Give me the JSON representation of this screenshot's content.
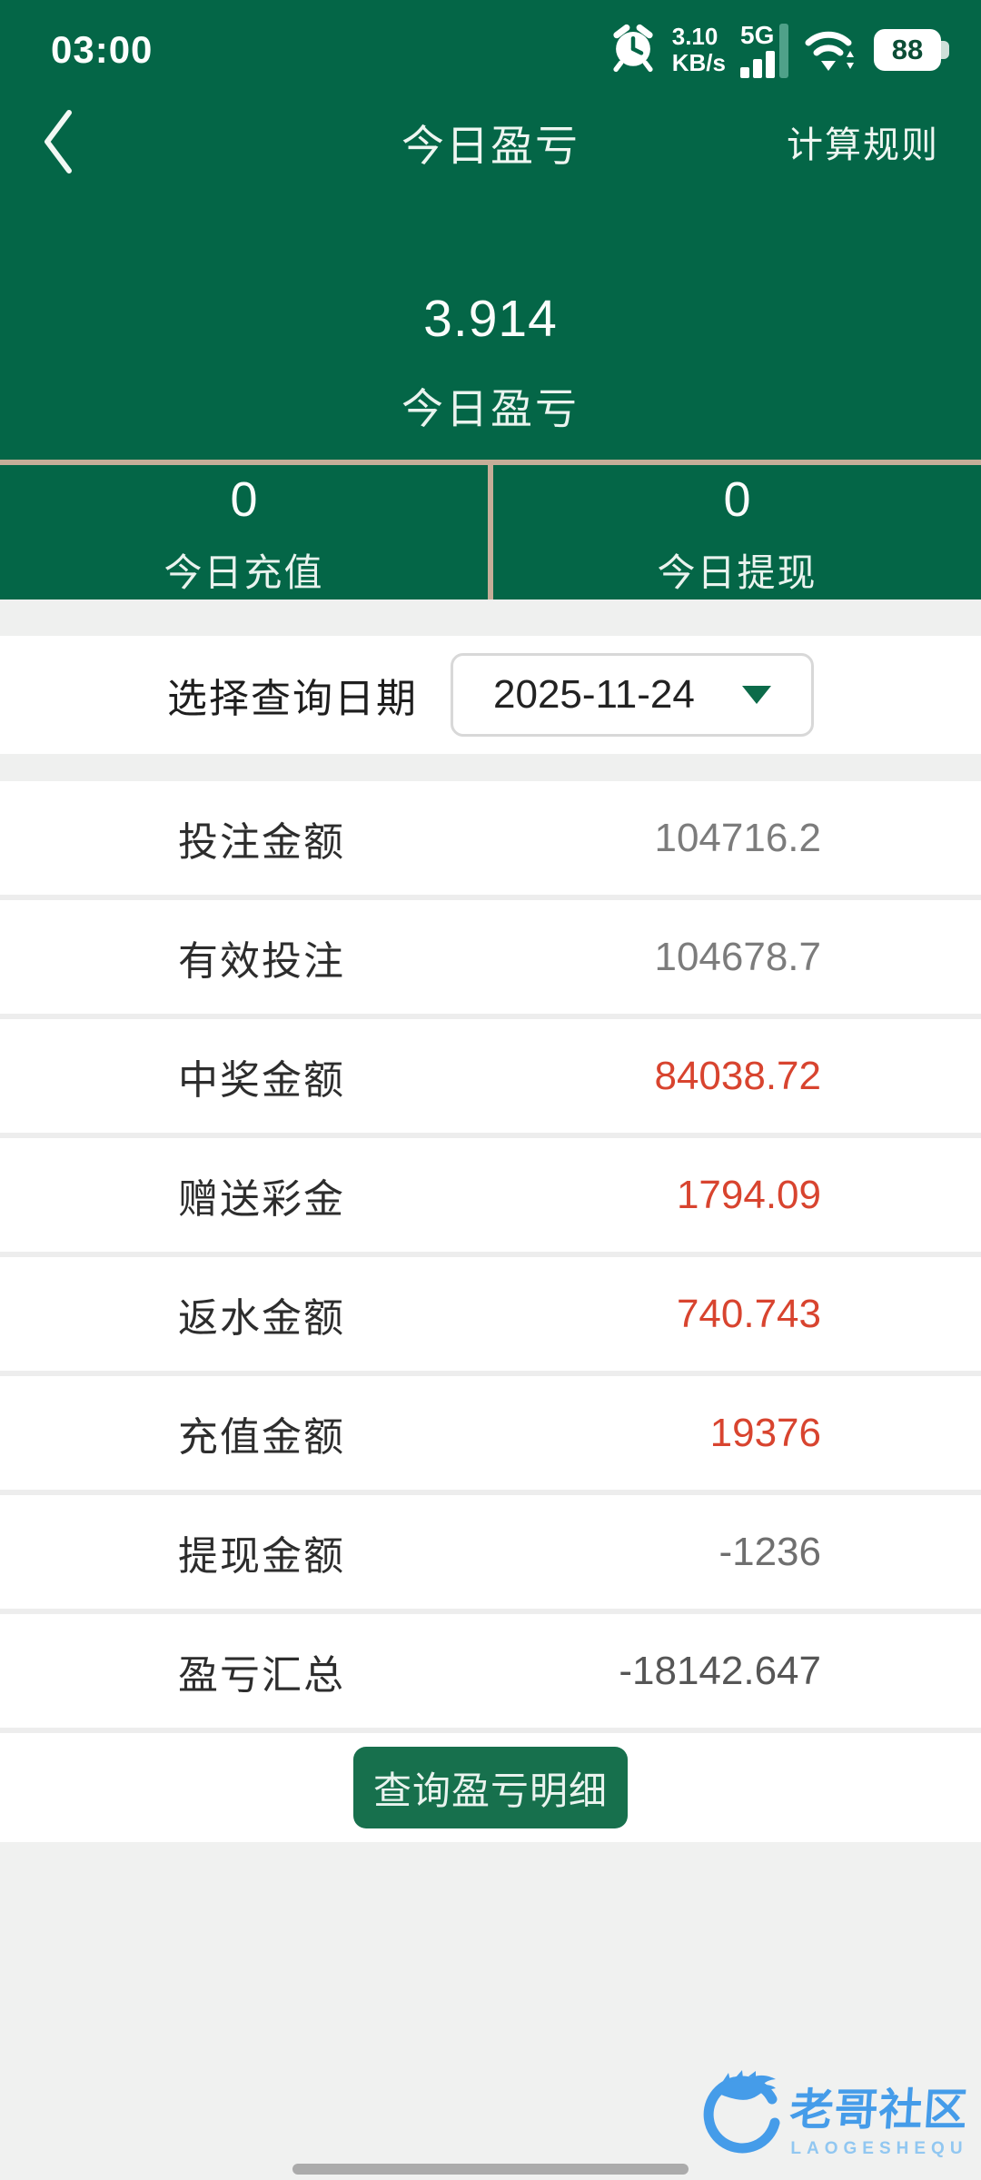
{
  "colors": {
    "header_green": "#046647",
    "button_green": "#17704d",
    "tan_border": "#c5ad98",
    "positive_red": "#d8442f",
    "watermark_blue": "#3795e9",
    "watermark_blue_light": "#8ac4f2"
  },
  "status_bar": {
    "time": "03:00",
    "net_speed_value": "3.10",
    "net_speed_unit": "KB/s",
    "network_type": "5G",
    "battery_level": "88",
    "icons": [
      "alarm-icon",
      "signal-bars-icon",
      "wifi-icon",
      "battery-icon"
    ]
  },
  "header": {
    "title": "今日盈亏",
    "right_action": "计算规则",
    "icons": [
      "back-chevron-icon"
    ]
  },
  "summary": {
    "value": "3.914",
    "label": "今日盈亏"
  },
  "today_stats": [
    {
      "value": "0",
      "label": "今日充值"
    },
    {
      "value": "0",
      "label": "今日提现"
    }
  ],
  "date_picker": {
    "label": "选择查询日期",
    "value": "2025-11-24",
    "icons": [
      "dropdown-caret-icon"
    ]
  },
  "rows": [
    {
      "label": "投注金额",
      "value": "104716.2",
      "color": "#7c7c7c"
    },
    {
      "label": "有效投注",
      "value": "104678.7",
      "color": "#7c7c7c"
    },
    {
      "label": "中奖金额",
      "value": "84038.72",
      "color": "#d8442f"
    },
    {
      "label": "赠送彩金",
      "value": "1794.09",
      "color": "#d8442f"
    },
    {
      "label": "返水金额",
      "value": "740.743",
      "color": "#d8442f"
    },
    {
      "label": "充值金额",
      "value": "19376",
      "color": "#d8442f"
    },
    {
      "label": "提现金额",
      "value": "-1236",
      "color": "#6f6f6f"
    },
    {
      "label": "盈亏汇总",
      "value": "-18142.647",
      "color": "#565656"
    }
  ],
  "button": {
    "label": "查询盈亏明细"
  },
  "watermark": {
    "title": "老哥社区",
    "subtitle": "LAOGESHEQU"
  }
}
